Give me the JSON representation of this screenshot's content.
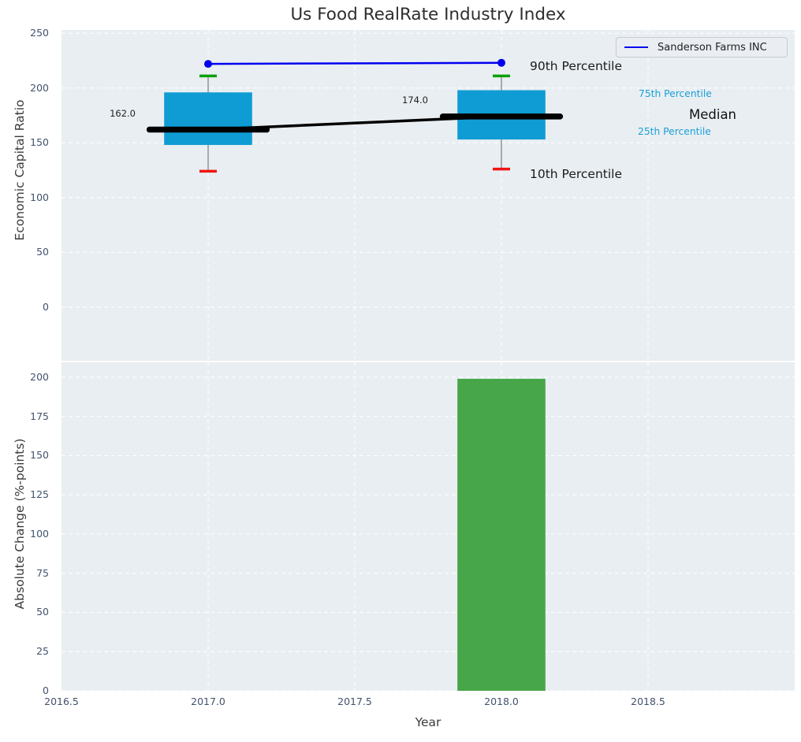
{
  "figure": {
    "title": "Us Food RealRate Industry Index",
    "xlabel": "Year"
  },
  "legend": {
    "label": "Sanderson Farms INC"
  },
  "annotations": {
    "p90_label": "90th Percentile",
    "p75_label": "75th Percentile",
    "median_label": "Median",
    "p25_label": "25th Percentile",
    "p10_label": "10th Percentile"
  },
  "colors": {
    "axes_background": "#e9eef2",
    "grid": "#ffffff",
    "box_fill": "#0f9cd4",
    "whisker": "#8c8c8c",
    "cap_high_green": "#0aa00a",
    "cap_low_red": "#f01414",
    "median_black": "#000000",
    "company_line_blue": "#0000f0",
    "bar_green": "#3aa03c",
    "tick_label": "#42526b",
    "percentile_cyan": "#18a0d8"
  },
  "chart_data": [
    {
      "type": "boxplot+line",
      "panel": "top",
      "title": "Us Food RealRate Industry Index",
      "ylabel": "Economic Capital Ratio",
      "xlim": [
        2016.5,
        2019.0
      ],
      "ylim": [
        -49,
        253
      ],
      "yticks": [
        0,
        50,
        100,
        150,
        200,
        250
      ],
      "xticks": [],
      "grid": true,
      "box_width": 0.3,
      "median_bar_halfwidth": 0.2,
      "boxes": [
        {
          "x": 2017,
          "whisker_low": 124,
          "q1": 148,
          "median": 162,
          "q3": 196,
          "whisker_high": 211,
          "label": "162.0"
        },
        {
          "x": 2018,
          "whisker_low": 126,
          "q1": 153,
          "median": 174,
          "q3": 198,
          "whisker_high": 211,
          "label": "174.0"
        }
      ],
      "median_trend": {
        "x": [
          2017,
          2018
        ],
        "values": [
          162,
          174
        ]
      },
      "series": [
        {
          "name": "Sanderson Farms INC",
          "x": [
            2017,
            2018
          ],
          "values": [
            222,
            223
          ],
          "marker": "circle"
        }
      ],
      "legend_position": "upper right",
      "percentile_annotations": [
        "90th Percentile",
        "75th Percentile",
        "Median",
        "25th Percentile",
        "10th Percentile"
      ]
    },
    {
      "type": "bar",
      "panel": "bottom",
      "ylabel": "Absolute Change (%-points)",
      "xlabel": "Year",
      "xlim": [
        2016.5,
        2019.0
      ],
      "ylim": [
        0,
        209.5
      ],
      "yticks": [
        0,
        25,
        50,
        75,
        100,
        125,
        150,
        175,
        200
      ],
      "xticks": [
        2016.5,
        2017.0,
        2017.5,
        2018.0,
        2018.5
      ],
      "xtick_format": "one_decimal",
      "grid": true,
      "bar_width": 0.3,
      "x": [
        2018
      ],
      "values": [
        199
      ]
    }
  ]
}
